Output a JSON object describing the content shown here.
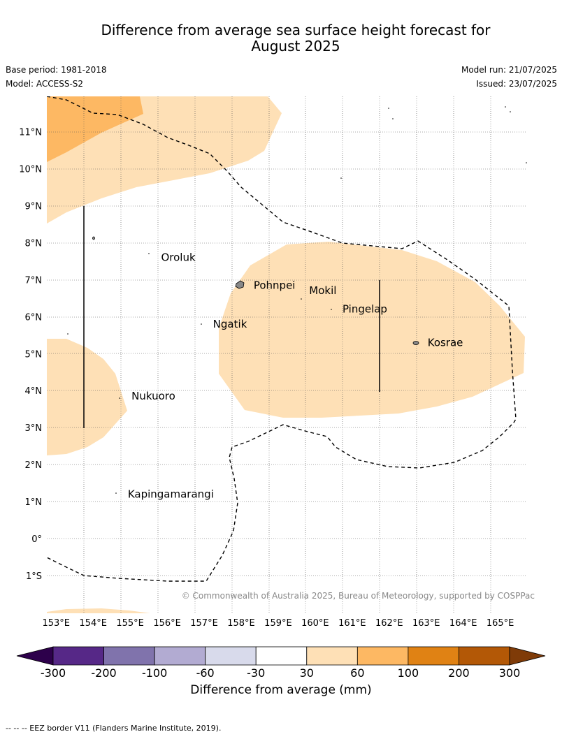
{
  "title_line1": "Difference from average sea surface height forecast for",
  "title_line2": "August 2025",
  "base_period": "Base period: 1981-2018",
  "model": "Model: ACCESS-S2",
  "model_run": "Model run: 21/07/2025",
  "issued": "Issued: 23/07/2025",
  "copyright": "© Commonwealth of Australia 2025, Bureau of Meteorology, supported by COSPPac",
  "lon_labels": [
    "153°E",
    "154°E",
    "155°E",
    "156°E",
    "157°E",
    "158°E",
    "159°E",
    "160°E",
    "161°E",
    "162°E",
    "163°E",
    "164°E",
    "165°E"
  ],
  "lat_labels": [
    "11°N",
    "10°N",
    "9°N",
    "8°N",
    "7°N",
    "6°N",
    "5°N",
    "4°N",
    "3°N",
    "2°N",
    "1°N",
    "0°",
    "1°S"
  ],
  "places": [
    {
      "name": "Oroluk",
      "lon": 155.8,
      "lat": 7.6
    },
    {
      "name": "Pohnpei",
      "lon": 158.3,
      "lat": 6.85
    },
    {
      "name": "Mokil",
      "lon": 159.8,
      "lat": 6.7
    },
    {
      "name": "Pingelap",
      "lon": 160.7,
      "lat": 6.2
    },
    {
      "name": "Ngatik",
      "lon": 157.2,
      "lat": 5.8
    },
    {
      "name": "Kosrae",
      "lon": 163.0,
      "lat": 5.3
    },
    {
      "name": "Nukuoro",
      "lon": 155.0,
      "lat": 3.85
    },
    {
      "name": "Kapingamarangi",
      "lon": 154.9,
      "lat": 1.2
    }
  ],
  "colorbar": {
    "ticks": [
      "-300",
      "-200",
      "-100",
      "-60",
      "-30",
      "30",
      "60",
      "100",
      "200",
      "300"
    ],
    "colors": [
      "#562887",
      "#8073ac",
      "#b2abd2",
      "#d8daeb",
      "#ffffff",
      "#fee0b6",
      "#fdb863",
      "#e08214",
      "#b35806"
    ],
    "under_color": "#2d004b",
    "over_color": "#7f3b08",
    "label": "Difference from average (mm)"
  },
  "footnote": "--  --  -- EEZ border V11 (Flanders Marine Institute, 2019)."
}
